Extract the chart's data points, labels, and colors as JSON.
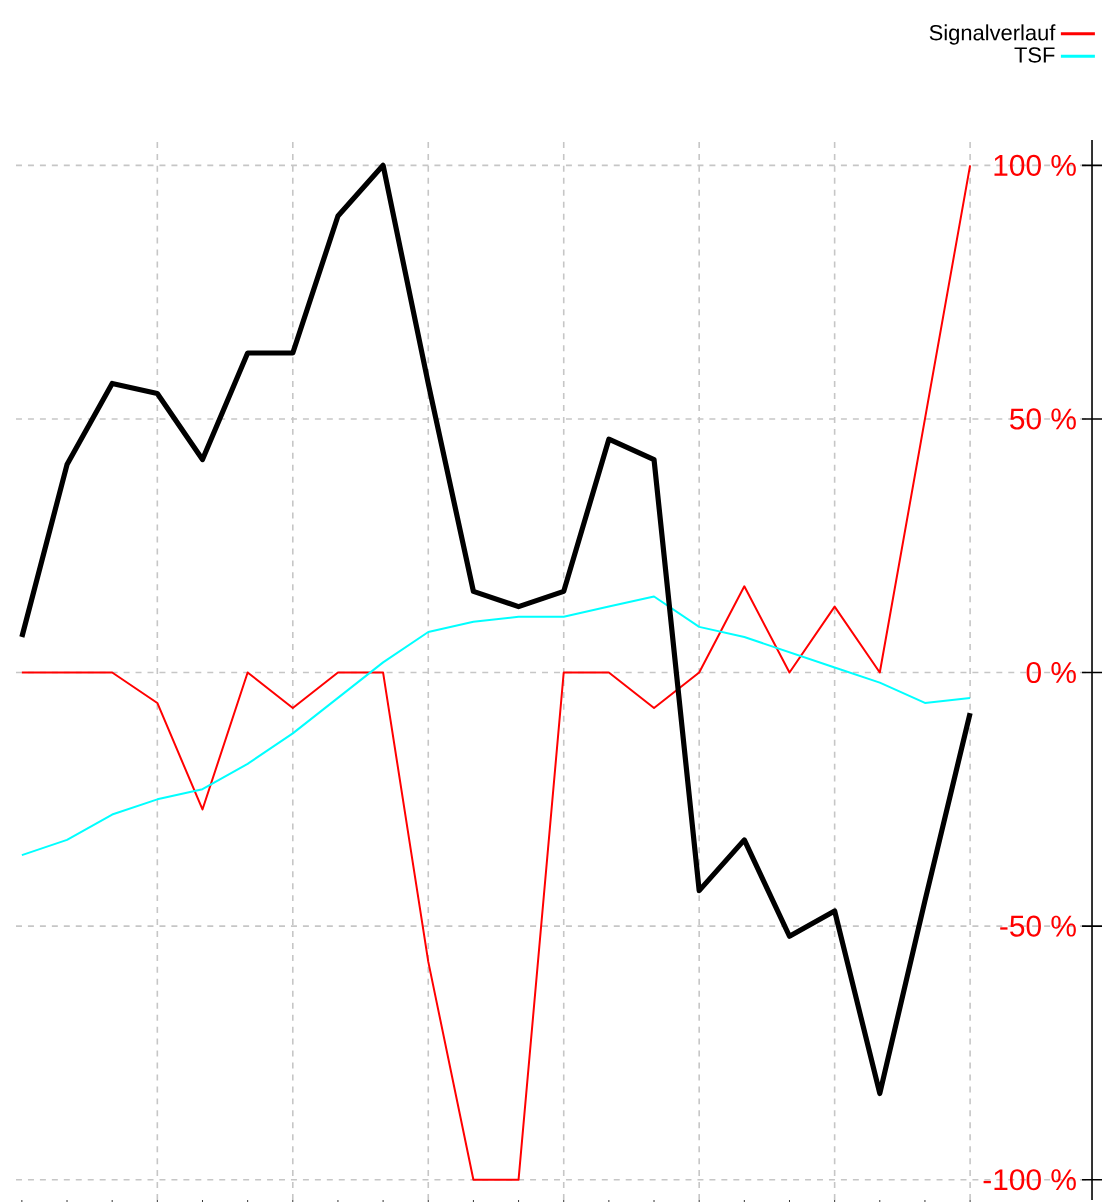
{
  "chart_data": {
    "type": "line",
    "categories": [
      null,
      null,
      null,
      null,
      null,
      null,
      null,
      null,
      null,
      null,
      null,
      null,
      null,
      null,
      null,
      null,
      null,
      null,
      null,
      null,
      null,
      null
    ],
    "series": [
      {
        "color": "#000000",
        "values": [
          7,
          41,
          57,
          55,
          42,
          63,
          63,
          90,
          100,
          57,
          16,
          13,
          16,
          46,
          42,
          -43,
          -33,
          -52,
          -47,
          -83,
          -45,
          -8
        ]
      },
      {
        "name": "Signalverlauf",
        "color": "#ff0000",
        "values": [
          0,
          0,
          0,
          -6,
          -27,
          0,
          -7,
          0,
          0,
          -57,
          -100,
          -100,
          0,
          0,
          -7,
          0,
          17,
          0,
          13,
          0,
          50,
          100
        ]
      },
      {
        "name": "TSF",
        "color": "#00ffff",
        "values": [
          -36,
          -33,
          -28,
          -25,
          -23,
          -18,
          -12,
          -5,
          2,
          8,
          10,
          11,
          11,
          13,
          15,
          9,
          7,
          4,
          1,
          -2,
          -6,
          -5
        ]
      }
    ],
    "ylim": [
      -104,
      105
    ],
    "yticks": [
      {
        "value": -100,
        "label": "-100 %"
      },
      {
        "value": -50,
        "label": "-50 %"
      },
      {
        "value": 0,
        "label": "0 %"
      },
      {
        "value": 50,
        "label": "50 %"
      },
      {
        "value": 100,
        "label": "100 %"
      }
    ],
    "tick_labels": "y",
    "grid": true,
    "legend": "top right",
    "line_style": "solid"
  }
}
